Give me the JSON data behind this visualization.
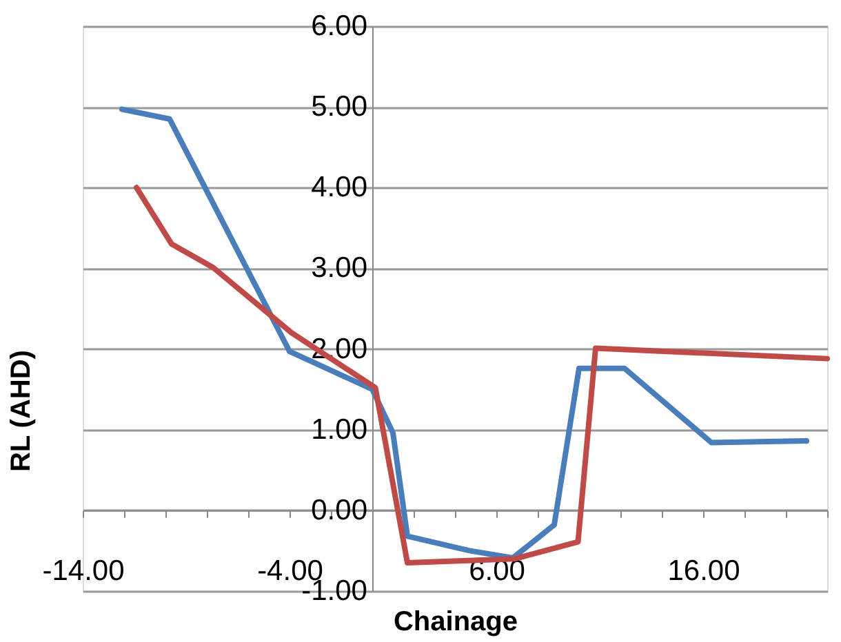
{
  "chart_data": {
    "type": "line",
    "xlabel": "Chainage",
    "ylabel": "RL (AHD)",
    "series": [
      {
        "color": "#4a7ebb",
        "x": [
          -12.1,
          -9.8,
          -4,
          0,
          1,
          1.7,
          4.7,
          6.8,
          8.8,
          10,
          12.2,
          16.4,
          21
        ],
        "values": [
          4.97,
          4.85,
          1.97,
          1.5,
          0.96,
          -0.32,
          -0.5,
          -0.59,
          -0.18,
          1.76,
          1.76,
          0.84,
          0.86
        ]
      },
      {
        "color": "#be4b48",
        "x": [
          -11.4,
          -9.7,
          -7.7,
          -3.9,
          0.15,
          1.7,
          6.9,
          9.95,
          10.8,
          22
        ],
        "values": [
          4.0,
          3.3,
          3.01,
          2.2,
          1.52,
          -0.65,
          -0.6,
          -0.39,
          2.01,
          1.88
        ]
      }
    ],
    "xlim": [
      -14,
      22
    ],
    "xticks": [
      {
        "value": -14,
        "label": "-14.00"
      },
      {
        "value": -12,
        "label": null
      },
      {
        "value": -10,
        "label": null
      },
      {
        "value": -8,
        "label": null
      },
      {
        "value": -6,
        "label": null
      },
      {
        "value": -4,
        "label": "-4.00"
      },
      {
        "value": -2,
        "label": null
      },
      {
        "value": 0,
        "label": null
      },
      {
        "value": 2,
        "label": null
      },
      {
        "value": 4,
        "label": null
      },
      {
        "value": 6,
        "label": "6.00"
      },
      {
        "value": 8,
        "label": null
      },
      {
        "value": 10,
        "label": null
      },
      {
        "value": 12,
        "label": null
      },
      {
        "value": 14,
        "label": null
      },
      {
        "value": 16,
        "label": "16.00"
      },
      {
        "value": 18,
        "label": null
      },
      {
        "value": 20,
        "label": null
      },
      {
        "value": 22,
        "label": null
      }
    ],
    "ylim": [
      -1,
      6
    ],
    "yticks": [
      {
        "value": -1,
        "label": "-1.00"
      },
      {
        "value": 0,
        "label": "0.00"
      },
      {
        "value": 1,
        "label": "1.00"
      },
      {
        "value": 2,
        "label": "2.00"
      },
      {
        "value": 3,
        "label": "3.00"
      },
      {
        "value": 4,
        "label": "4.00"
      },
      {
        "value": 5,
        "label": "5.00"
      },
      {
        "value": 6,
        "label": "6.00"
      }
    ],
    "grid": "y",
    "marker": "none",
    "line_style": "solid"
  }
}
